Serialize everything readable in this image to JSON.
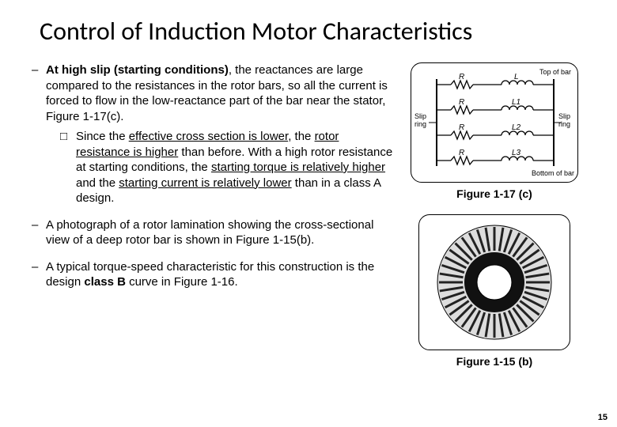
{
  "title": "Control of Induction Motor Characteristics",
  "bullets": {
    "b1": {
      "lead": "At high slip (starting conditions)",
      "rest": ", the reactances are large compared to the resistances in the rotor bars, so all the current is forced to flow in the low-reactance part of the bar near the stator, Figure 1-17(c)."
    },
    "b1sub": {
      "pre": "Since the ",
      "u1": "effective cross section is lower",
      "mid1": ", the  ",
      "u2": "rotor resistance is higher",
      "mid2": " than before. With a high rotor resistance at starting conditions, the ",
      "u3": "starting torque is relatively higher",
      "mid3": " and the ",
      "u4": "starting current is relatively lower",
      "post": " than in a class A design."
    },
    "b2": "A photograph of a rotor lamination showing the cross-sectional view of a deep rotor bar is shown in Figure 1-15(b).",
    "b3": {
      "pre": "A typical torque-speed characteristic for this construction is the design ",
      "bold": "class B",
      "post": " curve in Figure 1-16."
    }
  },
  "figures": {
    "f1": {
      "caption": "Figure 1-17 (c)",
      "labels": {
        "top": "Top of bar",
        "bottom": "Bottom of bar",
        "left": "Slip\nring",
        "right": "Slip\nring",
        "R": "R",
        "L": "L",
        "L1": "L1",
        "L2": "L2",
        "L3": "L3"
      },
      "stroke": "#000000",
      "bg": "#ffffff"
    },
    "f2": {
      "caption": "Figure 1-15 (b)",
      "stroke": "#000000",
      "fill": "#1a1a1a",
      "bg": "#ffffff"
    }
  },
  "page_number": "15",
  "colors": {
    "text": "#000000",
    "background": "#ffffff",
    "border": "#000000"
  },
  "fonts": {
    "title_family": "Calibri Light",
    "title_size_pt": 28,
    "body_family": "Arial",
    "body_size_pt": 13
  }
}
